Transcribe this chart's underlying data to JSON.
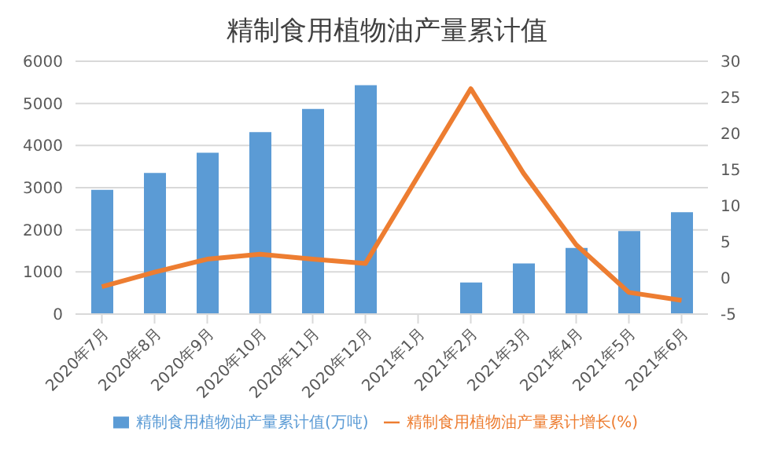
{
  "chart_data": {
    "type": "bar",
    "title": "精制食用植物油产量累计值",
    "categories": [
      "2020年7月",
      "2020年8月",
      "2020年9月",
      "2020年10月",
      "2020年11月",
      "2020年12月",
      "2021年1月",
      "2021年2月",
      "2021年3月",
      "2021年4月",
      "2021年5月",
      "2021年6月"
    ],
    "series": [
      {
        "name": "精制食用植物油产量累计值(万吨)",
        "color": "#5b9bd5",
        "values": [
          2950,
          3350,
          3830,
          4320,
          4870,
          5430,
          null,
          750,
          1200,
          1570,
          1970,
          2420
        ]
      },
      {
        "name": "精制食用植物油产量累计增长(%)",
        "type": "line",
        "axis": "y2",
        "color": "#ed7d31",
        "values": [
          -1.2,
          0.8,
          2.6,
          3.3,
          2.6,
          2.0,
          null,
          26.2,
          14.5,
          4.6,
          -2,
          -3.1
        ]
      }
    ],
    "ylim": [
      0,
      6000
    ],
    "yticks": [
      0,
      1000,
      2000,
      3000,
      4000,
      5000,
      6000
    ],
    "y2lim": [
      -5,
      30
    ],
    "y2ticks": [
      -5,
      0,
      5,
      10,
      15,
      20,
      25,
      30
    ],
    "grid": "y",
    "legend": "bottom"
  }
}
